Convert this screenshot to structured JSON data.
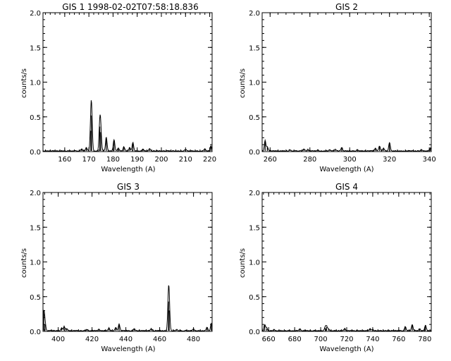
{
  "chart_data": [
    {
      "type": "line",
      "title": "GIS 1 1998-02-02T07:58:18.836",
      "xlabel": "Wavelength (A)",
      "ylabel": "counts/s",
      "xlim": [
        151,
        221
      ],
      "ylim": [
        0,
        2.0
      ],
      "xticks": [
        "160",
        "170",
        "180",
        "190",
        "200",
        "210",
        "220"
      ],
      "yticks": [
        "0.0",
        "0.5",
        "1.0",
        "1.5",
        "2.0"
      ],
      "grid": false,
      "baseline": 0.01,
      "lines": [
        {
          "x": 167.0,
          "y": 0.03
        },
        {
          "x": 169.0,
          "y": 0.05
        },
        {
          "x": 171.1,
          "y": 0.52
        },
        {
          "x": 170.8,
          "y": 0.3
        },
        {
          "x": 174.5,
          "y": 0.36
        },
        {
          "x": 174.9,
          "y": 0.28
        },
        {
          "x": 177.2,
          "y": 0.2
        },
        {
          "x": 180.4,
          "y": 0.16
        },
        {
          "x": 182.2,
          "y": 0.04
        },
        {
          "x": 184.5,
          "y": 0.06
        },
        {
          "x": 186.9,
          "y": 0.05
        },
        {
          "x": 188.2,
          "y": 0.12
        },
        {
          "x": 192.4,
          "y": 0.03
        },
        {
          "x": 195.1,
          "y": 0.03
        },
        {
          "x": 210.0,
          "y": 0.02
        },
        {
          "x": 218.0,
          "y": 0.03
        },
        {
          "x": 220.5,
          "y": 0.07
        }
      ]
    },
    {
      "type": "line",
      "title": "GIS 2",
      "xlabel": "Wavelength (A)",
      "ylabel": "counts/s",
      "xlim": [
        256,
        341
      ],
      "ylim": [
        0,
        2.0
      ],
      "xticks": [
        "260",
        "280",
        "300",
        "320",
        "340"
      ],
      "yticks": [
        "0.0",
        "0.5",
        "1.0",
        "1.5",
        "2.0"
      ],
      "grid": false,
      "baseline": 0.01,
      "lines": [
        {
          "x": 257.5,
          "y": 0.15
        },
        {
          "x": 258.6,
          "y": 0.06
        },
        {
          "x": 270.0,
          "y": 0.02
        },
        {
          "x": 277.0,
          "y": 0.03
        },
        {
          "x": 279.0,
          "y": 0.02
        },
        {
          "x": 284.0,
          "y": 0.02
        },
        {
          "x": 290.0,
          "y": 0.02
        },
        {
          "x": 292.8,
          "y": 0.02
        },
        {
          "x": 296.0,
          "y": 0.05
        },
        {
          "x": 303.8,
          "y": 0.02
        },
        {
          "x": 313.0,
          "y": 0.04
        },
        {
          "x": 315.0,
          "y": 0.07
        },
        {
          "x": 317.0,
          "y": 0.04
        },
        {
          "x": 320.0,
          "y": 0.12
        },
        {
          "x": 336.0,
          "y": 0.02
        },
        {
          "x": 340.5,
          "y": 0.04
        }
      ]
    },
    {
      "type": "line",
      "title": "GIS 3",
      "xlabel": "Wavelength (A)",
      "ylabel": "counts/s",
      "xlim": [
        391,
        491
      ],
      "ylim": [
        0,
        2.0
      ],
      "xticks": [
        "400",
        "420",
        "440",
        "460",
        "480"
      ],
      "yticks": [
        "0.0",
        "0.5",
        "1.0",
        "1.5",
        "2.0"
      ],
      "grid": false,
      "baseline": 0.01,
      "lines": [
        {
          "x": 391.5,
          "y": 0.26
        },
        {
          "x": 392.2,
          "y": 0.1
        },
        {
          "x": 402.0,
          "y": 0.04
        },
        {
          "x": 403.5,
          "y": 0.06
        },
        {
          "x": 405.0,
          "y": 0.03
        },
        {
          "x": 417.0,
          "y": 0.02
        },
        {
          "x": 424.0,
          "y": 0.02
        },
        {
          "x": 430.0,
          "y": 0.04
        },
        {
          "x": 434.0,
          "y": 0.05
        },
        {
          "x": 436.0,
          "y": 0.1
        },
        {
          "x": 445.0,
          "y": 0.03
        },
        {
          "x": 455.0,
          "y": 0.03
        },
        {
          "x": 465.2,
          "y": 0.43
        },
        {
          "x": 465.6,
          "y": 0.3
        },
        {
          "x": 470.0,
          "y": 0.02
        },
        {
          "x": 480.0,
          "y": 0.03
        },
        {
          "x": 488.0,
          "y": 0.05
        },
        {
          "x": 490.5,
          "y": 0.1
        }
      ]
    },
    {
      "type": "line",
      "title": "GIS 4",
      "xlabel": "Wavelength (A)",
      "ylabel": "counts/s",
      "xlim": [
        655,
        785
      ],
      "ylim": [
        0,
        2.0
      ],
      "xticks": [
        "660",
        "680",
        "700",
        "720",
        "740",
        "760",
        "780"
      ],
      "yticks": [
        "0.0",
        "0.5",
        "1.0",
        "1.5",
        "2.0"
      ],
      "grid": false,
      "baseline": 0.01,
      "lines": [
        {
          "x": 657.0,
          "y": 0.09
        },
        {
          "x": 658.5,
          "y": 0.04
        },
        {
          "x": 664.0,
          "y": 0.02
        },
        {
          "x": 684.0,
          "y": 0.03
        },
        {
          "x": 703.5,
          "y": 0.05
        },
        {
          "x": 704.5,
          "y": 0.06
        },
        {
          "x": 706.0,
          "y": 0.03
        },
        {
          "x": 718.5,
          "y": 0.03
        },
        {
          "x": 738.0,
          "y": 0.03
        },
        {
          "x": 740.0,
          "y": 0.02
        },
        {
          "x": 765.0,
          "y": 0.06
        },
        {
          "x": 770.4,
          "y": 0.09
        },
        {
          "x": 776.0,
          "y": 0.03
        },
        {
          "x": 780.5,
          "y": 0.08
        }
      ]
    }
  ]
}
